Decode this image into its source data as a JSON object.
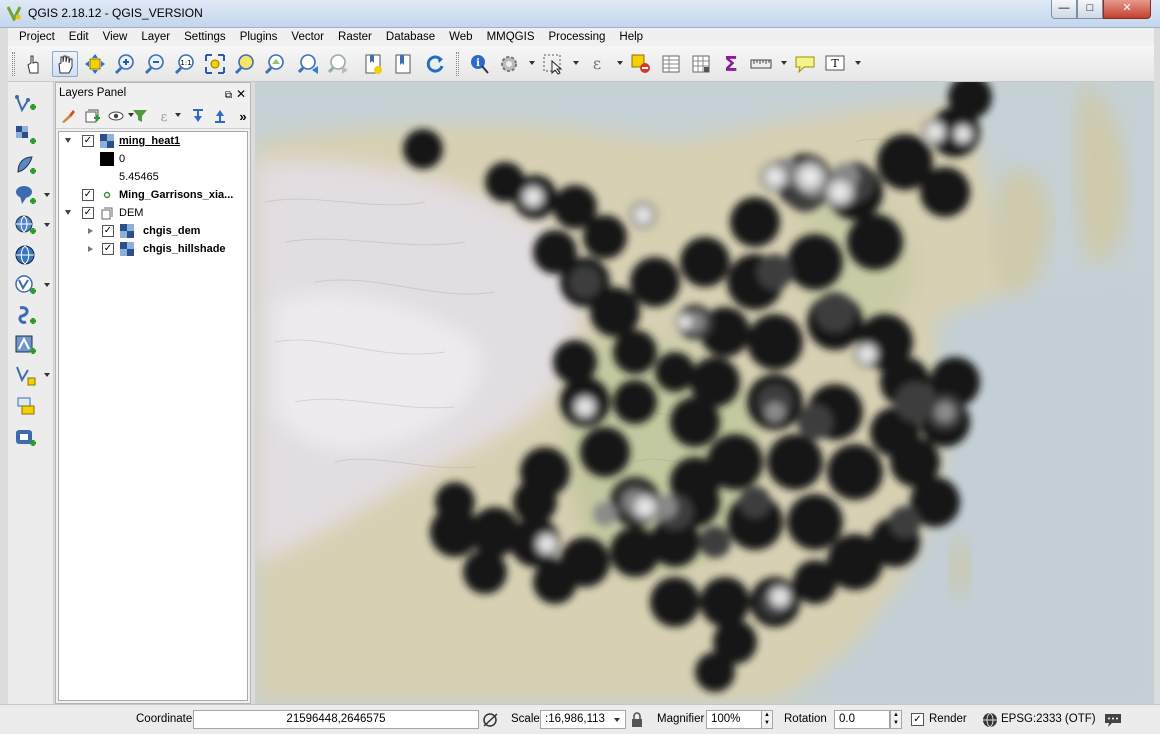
{
  "window": {
    "title": "QGIS 2.18.12 - QGIS_VERSION",
    "controls": {
      "minimize": "—",
      "maximize": "□",
      "close": "✕"
    }
  },
  "menu": [
    "Project",
    "Edit",
    "View",
    "Layer",
    "Settings",
    "Plugins",
    "Vector",
    "Raster",
    "Database",
    "Web",
    "MMQGIS",
    "Processing",
    "Help"
  ],
  "toolbar_icons": [
    "touch-icon",
    "pan-icon",
    "pan-to-selection-icon",
    "zoom-in-icon",
    "zoom-out-icon",
    "zoom-actual-size-icon",
    "zoom-full-icon",
    "zoom-to-selection-icon",
    "zoom-to-layer-icon",
    "zoom-last-icon",
    "zoom-next-icon",
    "new-bookmark-icon",
    "show-bookmarks-icon",
    "refresh-icon",
    "identify-icon",
    "action-icon",
    "select-icon",
    "expression-select-icon",
    "deselect-icon",
    "attribute-table-icon",
    "field-calculator-icon",
    "statistics-icon",
    "measure-icon",
    "map-tips-icon",
    "text-annotation-icon"
  ],
  "layers_panel": {
    "title": "Layers Panel",
    "more": "»",
    "layers": [
      {
        "name": "ming_heat1",
        "checked": true,
        "expanded": true,
        "selected": true,
        "type": "raster"
      },
      {
        "legend_min": "0",
        "legend_max": "5.45465"
      },
      {
        "name": "Ming_Garrisons_xia...",
        "checked": true,
        "type": "point"
      },
      {
        "name": "DEM",
        "checked": true,
        "expanded": true,
        "type": "group"
      },
      {
        "name": "chgis_dem",
        "checked": true,
        "expanded": false,
        "type": "raster"
      },
      {
        "name": "chgis_hillshade",
        "checked": true,
        "expanded": false,
        "type": "raster"
      }
    ]
  },
  "status": {
    "coordinate_label": "Coordinate",
    "coordinate_value": "21596448,2646575",
    "scale_label": "Scale",
    "scale_value": ":16,986,113",
    "magnifier_label": "Magnifier",
    "magnifier_value": "100%",
    "rotation_label": "Rotation",
    "rotation_value": "0.0",
    "render_label": "Render",
    "render_checked": true,
    "crs_label": "EPSG:2333 (OTF)"
  },
  "colors": {
    "heat_low": "#111111",
    "heat_high": "#ffffff",
    "sea": "#c6d2d6",
    "land": "#d9d3b8",
    "mountains": "#b8b2a3"
  }
}
